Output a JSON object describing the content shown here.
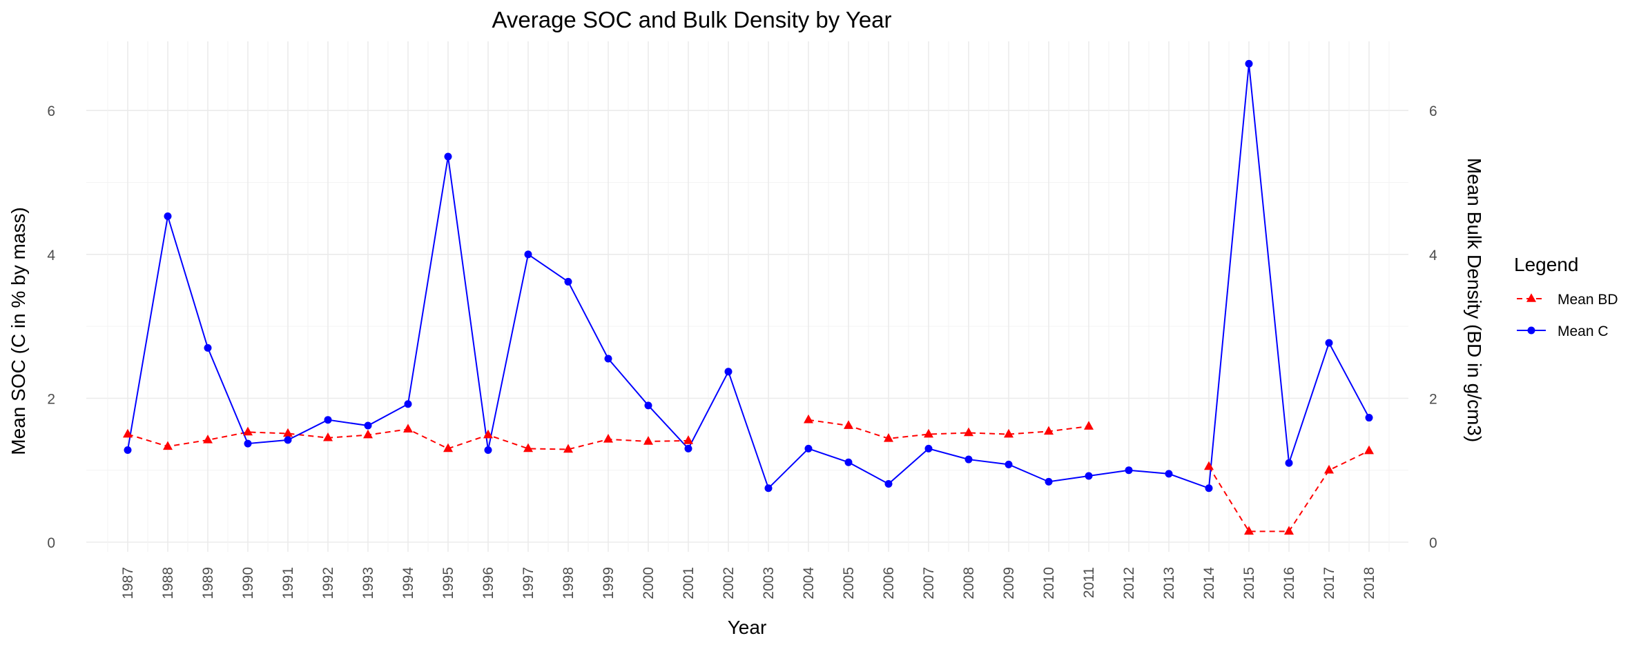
{
  "chart_data": {
    "type": "line",
    "title": "Average SOC and Bulk Density by Year",
    "xlabel": "Year",
    "ylabel": "Mean SOC (C in % by mass)",
    "y2label": "Mean Bulk Density (BD in g/cm3)",
    "ylim": [
      0,
      6.9
    ],
    "yticks": [
      0,
      2,
      4,
      6
    ],
    "y2ticks": [
      0,
      2,
      4,
      6
    ],
    "grid": true,
    "legend": {
      "title": "Legend",
      "position": "right",
      "entries": [
        "Mean BD",
        "Mean C"
      ]
    },
    "x": [
      "1987",
      "1988",
      "1989",
      "1990",
      "1991",
      "1992",
      "1993",
      "1994",
      "1995",
      "1996",
      "1997",
      "1998",
      "1999",
      "2000",
      "2001",
      "2002",
      "2003",
      "2004",
      "2005",
      "2006",
      "2007",
      "2008",
      "2009",
      "2010",
      "2011",
      "2012",
      "2013",
      "2014",
      "2015",
      "2016",
      "2017",
      "2018"
    ],
    "series": [
      {
        "name": "Mean BD",
        "color": "#ff0000",
        "style": "dashed",
        "marker": "triangle",
        "values": [
          1.5,
          1.33,
          1.42,
          1.53,
          1.51,
          1.45,
          1.49,
          1.57,
          1.3,
          1.49,
          1.3,
          1.29,
          1.43,
          1.4,
          1.41,
          null,
          null,
          1.7,
          1.62,
          1.44,
          1.5,
          1.52,
          1.5,
          1.54,
          1.61,
          null,
          null,
          1.05,
          0.15,
          0.15,
          1.0,
          1.27
        ]
      },
      {
        "name": "Mean C",
        "color": "#0000ff",
        "style": "solid",
        "marker": "circle",
        "values": [
          1.28,
          4.53,
          2.7,
          1.37,
          1.42,
          1.7,
          1.62,
          1.92,
          5.36,
          1.28,
          4.0,
          3.62,
          2.55,
          1.9,
          1.3,
          2.37,
          0.75,
          1.3,
          1.11,
          0.81,
          1.3,
          1.15,
          1.08,
          0.84,
          0.92,
          1.0,
          0.95,
          0.75,
          6.65,
          1.1,
          2.77,
          1.73
        ]
      }
    ]
  }
}
